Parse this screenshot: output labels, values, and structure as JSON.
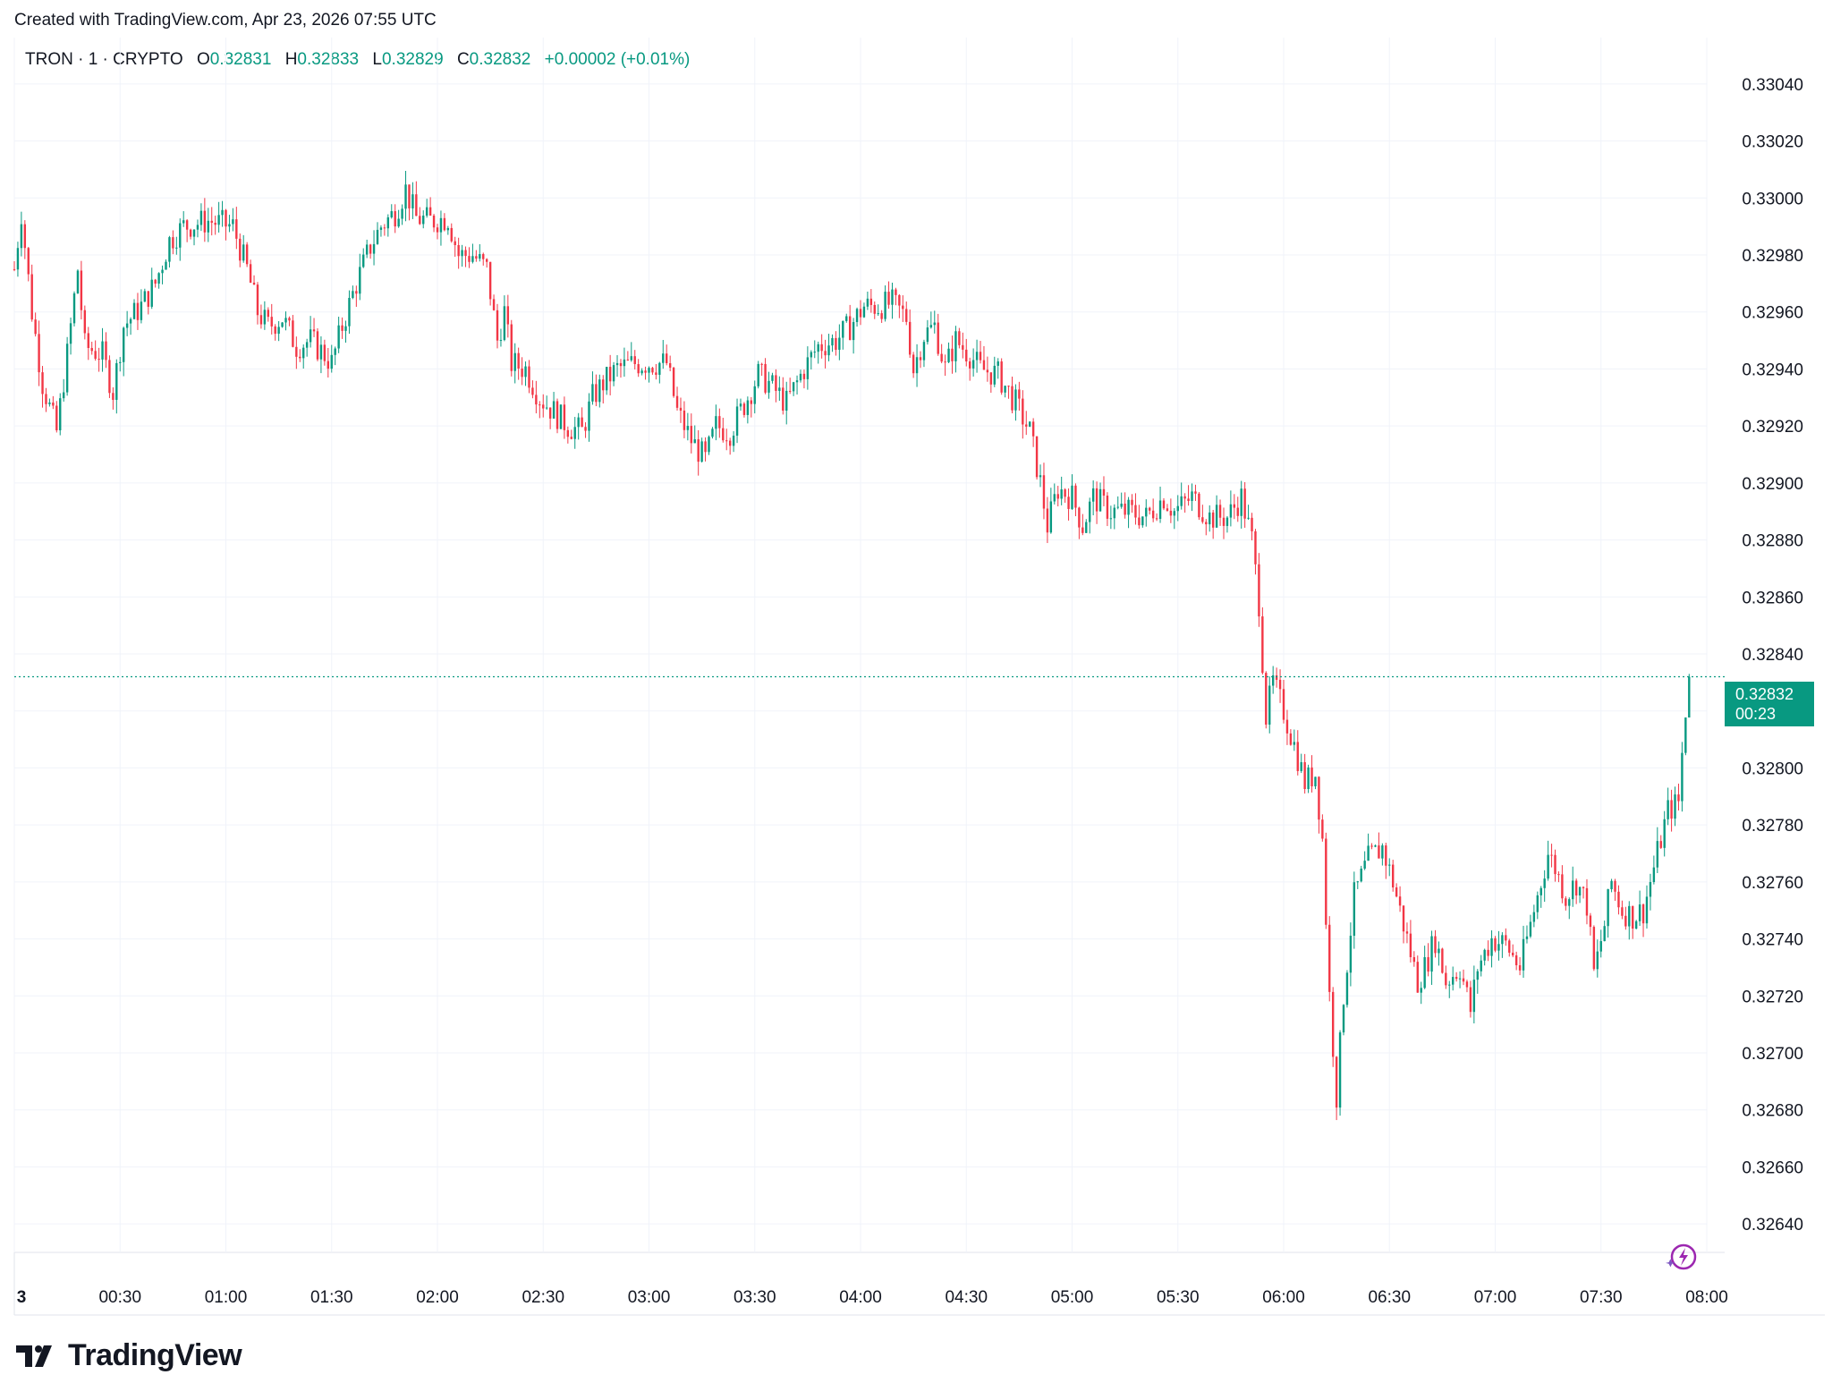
{
  "header": {
    "credit": "Created with TradingView.com, Apr 23, 2026 07:55 UTC"
  },
  "legend": {
    "symbol": "TRON · 1 · CRYPTO",
    "open_label": "O",
    "open": "0.32831",
    "high_label": "H",
    "high": "0.32833",
    "low_label": "L",
    "low": "0.32829",
    "close_label": "C",
    "close": "0.32832",
    "change": "+0.00002 (+0.01%)"
  },
  "price_tag": {
    "price": "0.32832",
    "countdown": "00:23"
  },
  "brand": {
    "name": "TradingView"
  },
  "colors": {
    "up": "#089981",
    "down": "#F23645",
    "grid": "#F0F3FA",
    "text": "#131722"
  },
  "chart_data": {
    "type": "candlestick",
    "interval": "1 minute",
    "y_axis": {
      "range": [
        0.3263,
        0.3305
      ],
      "ticks": [
        "0.32640",
        "0.32660",
        "0.32680",
        "0.32700",
        "0.32720",
        "0.32740",
        "0.32760",
        "0.32780",
        "0.32800",
        "0.32820",
        "0.32840",
        "0.32860",
        "0.32880",
        "0.32900",
        "0.32920",
        "0.32940",
        "0.32960",
        "0.32980",
        "0.33000",
        "0.33020",
        "0.33040"
      ]
    },
    "x_axis": {
      "range": [
        "00:00",
        "08:00"
      ],
      "ticks": [
        {
          "t": "00:00",
          "label": "3"
        },
        {
          "t": "00:30",
          "label": "00:30"
        },
        {
          "t": "01:00",
          "label": "01:00"
        },
        {
          "t": "01:30",
          "label": "01:30"
        },
        {
          "t": "02:00",
          "label": "02:00"
        },
        {
          "t": "02:30",
          "label": "02:30"
        },
        {
          "t": "03:00",
          "label": "03:00"
        },
        {
          "t": "03:30",
          "label": "03:30"
        },
        {
          "t": "04:00",
          "label": "04:00"
        },
        {
          "t": "04:30",
          "label": "04:30"
        },
        {
          "t": "05:00",
          "label": "05:00"
        },
        {
          "t": "05:30",
          "label": "05:30"
        },
        {
          "t": "06:00",
          "label": "06:00"
        },
        {
          "t": "06:30",
          "label": "06:30"
        },
        {
          "t": "07:00",
          "label": "07:00"
        },
        {
          "t": "07:30",
          "label": "07:30"
        },
        {
          "t": "08:00",
          "label": "08:00"
        }
      ]
    },
    "grid": true,
    "last_price": 0.32832,
    "close_series": [
      {
        "t": "00:00",
        "close": 0.32975
      },
      {
        "t": "00:02",
        "close": 0.32995
      },
      {
        "t": "00:05",
        "close": 0.3296
      },
      {
        "t": "00:08",
        "close": 0.32935
      },
      {
        "t": "00:12",
        "close": 0.32918
      },
      {
        "t": "00:15",
        "close": 0.32945
      },
      {
        "t": "00:18",
        "close": 0.32975
      },
      {
        "t": "00:20",
        "close": 0.32948
      },
      {
        "t": "00:25",
        "close": 0.32945
      },
      {
        "t": "00:28",
        "close": 0.32932
      },
      {
        "t": "00:31",
        "close": 0.32955
      },
      {
        "t": "00:36",
        "close": 0.32962
      },
      {
        "t": "00:40",
        "close": 0.3297
      },
      {
        "t": "00:44",
        "close": 0.32985
      },
      {
        "t": "00:48",
        "close": 0.3299
      },
      {
        "t": "00:55",
        "close": 0.32992
      },
      {
        "t": "01:02",
        "close": 0.3299
      },
      {
        "t": "01:06",
        "close": 0.32975
      },
      {
        "t": "01:09",
        "close": 0.3296
      },
      {
        "t": "01:12",
        "close": 0.32955
      },
      {
        "t": "01:16",
        "close": 0.32958
      },
      {
        "t": "01:20",
        "close": 0.32948
      },
      {
        "t": "01:24",
        "close": 0.3295
      },
      {
        "t": "01:28",
        "close": 0.32945
      },
      {
        "t": "01:30",
        "close": 0.32942
      },
      {
        "t": "01:33",
        "close": 0.32955
      },
      {
        "t": "01:37",
        "close": 0.3297
      },
      {
        "t": "01:41",
        "close": 0.32983
      },
      {
        "t": "01:44",
        "close": 0.3299
      },
      {
        "t": "01:48",
        "close": 0.32995
      },
      {
        "t": "01:51",
        "close": 0.33003
      },
      {
        "t": "01:54",
        "close": 0.32993
      },
      {
        "t": "01:58",
        "close": 0.32992
      },
      {
        "t": "02:03",
        "close": 0.32993
      },
      {
        "t": "02:06",
        "close": 0.3298
      },
      {
        "t": "02:10",
        "close": 0.3298
      },
      {
        "t": "02:14",
        "close": 0.32975
      },
      {
        "t": "02:17",
        "close": 0.3295
      },
      {
        "t": "02:19",
        "close": 0.3296
      },
      {
        "t": "02:21",
        "close": 0.32942
      },
      {
        "t": "02:25",
        "close": 0.3294
      },
      {
        "t": "02:29",
        "close": 0.3293
      },
      {
        "t": "02:33",
        "close": 0.32925
      },
      {
        "t": "02:37",
        "close": 0.3292
      },
      {
        "t": "02:41",
        "close": 0.32918
      },
      {
        "t": "02:44",
        "close": 0.3293
      },
      {
        "t": "02:47",
        "close": 0.32935
      },
      {
        "t": "02:51",
        "close": 0.3294
      },
      {
        "t": "02:56",
        "close": 0.32942
      },
      {
        "t": "03:05",
        "close": 0.32942
      },
      {
        "t": "03:08",
        "close": 0.32925
      },
      {
        "t": "03:12",
        "close": 0.32915
      },
      {
        "t": "03:16",
        "close": 0.32908
      },
      {
        "t": "03:19",
        "close": 0.3292
      },
      {
        "t": "03:23",
        "close": 0.32918
      },
      {
        "t": "03:28",
        "close": 0.3293
      },
      {
        "t": "03:31",
        "close": 0.32938
      },
      {
        "t": "03:34",
        "close": 0.32935
      },
      {
        "t": "03:39",
        "close": 0.32928
      },
      {
        "t": "03:44",
        "close": 0.3294
      },
      {
        "t": "03:48",
        "close": 0.32948
      },
      {
        "t": "03:53",
        "close": 0.3295
      },
      {
        "t": "03:57",
        "close": 0.32955
      },
      {
        "t": "04:01",
        "close": 0.32962
      },
      {
        "t": "04:05",
        "close": 0.32962
      },
      {
        "t": "04:09",
        "close": 0.32963
      },
      {
        "t": "04:13",
        "close": 0.32958
      },
      {
        "t": "04:15",
        "close": 0.3294
      },
      {
        "t": "04:18",
        "close": 0.32952
      },
      {
        "t": "04:21",
        "close": 0.32955
      },
      {
        "t": "04:24",
        "close": 0.3294
      },
      {
        "t": "04:27",
        "close": 0.3295
      },
      {
        "t": "04:31",
        "close": 0.32945
      },
      {
        "t": "04:34",
        "close": 0.3294
      },
      {
        "t": "04:39",
        "close": 0.32938
      },
      {
        "t": "04:44",
        "close": 0.32928
      },
      {
        "t": "04:48",
        "close": 0.32918
      },
      {
        "t": "04:51",
        "close": 0.329
      },
      {
        "t": "04:53",
        "close": 0.32885
      },
      {
        "t": "04:56",
        "close": 0.32898
      },
      {
        "t": "05:00",
        "close": 0.32895
      },
      {
        "t": "05:03",
        "close": 0.32885
      },
      {
        "t": "05:06",
        "close": 0.32895
      },
      {
        "t": "05:11",
        "close": 0.3289
      },
      {
        "t": "05:16",
        "close": 0.3289
      },
      {
        "t": "05:21",
        "close": 0.32888
      },
      {
        "t": "05:26",
        "close": 0.32895
      },
      {
        "t": "05:29",
        "close": 0.3289
      },
      {
        "t": "05:34",
        "close": 0.32895
      },
      {
        "t": "05:39",
        "close": 0.32888
      },
      {
        "t": "05:44",
        "close": 0.32888
      },
      {
        "t": "05:48",
        "close": 0.32895
      },
      {
        "t": "05:51",
        "close": 0.3288
      },
      {
        "t": "05:53",
        "close": 0.32858
      },
      {
        "t": "05:55",
        "close": 0.32818
      },
      {
        "t": "05:57",
        "close": 0.3283
      },
      {
        "t": "06:00",
        "close": 0.3282
      },
      {
        "t": "06:03",
        "close": 0.32808
      },
      {
        "t": "06:06",
        "close": 0.32795
      },
      {
        "t": "06:09",
        "close": 0.32798
      },
      {
        "t": "06:11",
        "close": 0.32775
      },
      {
        "t": "06:13",
        "close": 0.3272
      },
      {
        "t": "06:15",
        "close": 0.32685
      },
      {
        "t": "06:17",
        "close": 0.3272
      },
      {
        "t": "06:20",
        "close": 0.32755
      },
      {
        "t": "06:24",
        "close": 0.32768
      },
      {
        "t": "06:28",
        "close": 0.32772
      },
      {
        "t": "06:31",
        "close": 0.3276
      },
      {
        "t": "06:34",
        "close": 0.32745
      },
      {
        "t": "06:36",
        "close": 0.32735
      },
      {
        "t": "06:38",
        "close": 0.32725
      },
      {
        "t": "06:40",
        "close": 0.3273
      },
      {
        "t": "06:43",
        "close": 0.3274
      },
      {
        "t": "06:46",
        "close": 0.32725
      },
      {
        "t": "06:50",
        "close": 0.3273
      },
      {
        "t": "06:53",
        "close": 0.32715
      },
      {
        "t": "06:55",
        "close": 0.3273
      },
      {
        "t": "06:59",
        "close": 0.3274
      },
      {
        "t": "07:03",
        "close": 0.32738
      },
      {
        "t": "07:07",
        "close": 0.3273
      },
      {
        "t": "07:10",
        "close": 0.32745
      },
      {
        "t": "07:13",
        "close": 0.3276
      },
      {
        "t": "07:15",
        "close": 0.3277
      },
      {
        "t": "07:17",
        "close": 0.32765
      },
      {
        "t": "07:20",
        "close": 0.32755
      },
      {
        "t": "07:23",
        "close": 0.3276
      },
      {
        "t": "07:26",
        "close": 0.32752
      },
      {
        "t": "07:28",
        "close": 0.32728
      },
      {
        "t": "07:31",
        "close": 0.32745
      },
      {
        "t": "07:33",
        "close": 0.3276
      },
      {
        "t": "07:36",
        "close": 0.3275
      },
      {
        "t": "07:39",
        "close": 0.32748
      },
      {
        "t": "07:42",
        "close": 0.3275
      },
      {
        "t": "07:45",
        "close": 0.32765
      },
      {
        "t": "07:47",
        "close": 0.32775
      },
      {
        "t": "07:49",
        "close": 0.32785
      },
      {
        "t": "07:52",
        "close": 0.32788
      },
      {
        "t": "07:53",
        "close": 0.32805
      },
      {
        "t": "07:54",
        "close": 0.3282
      },
      {
        "t": "07:55",
        "close": 0.32832
      }
    ]
  }
}
